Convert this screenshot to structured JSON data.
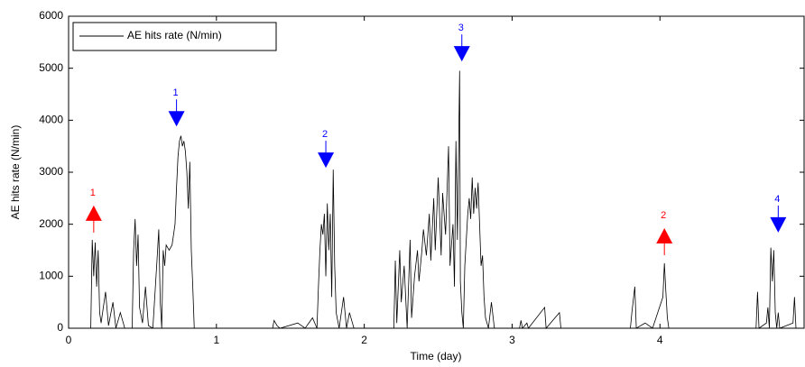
{
  "chart_data": {
    "type": "line",
    "xlabel": "Time (day)",
    "ylabel": "AE hits rate (N/min)",
    "xlim": [
      0,
      4.975
    ],
    "ylim": [
      0,
      6000
    ],
    "xticks": [
      0,
      1,
      2,
      3,
      4
    ],
    "yticks": [
      0,
      1000,
      2000,
      3000,
      4000,
      5000,
      6000
    ],
    "grid": false,
    "legend": "upper left",
    "x": [
      0,
      0.15,
      0.16,
      0.17,
      0.18,
      0.19,
      0.2,
      0.21,
      0.22,
      0.25,
      0.27,
      0.3,
      0.32,
      0.35,
      0.38,
      0.43,
      0.44,
      0.45,
      0.46,
      0.47,
      0.48,
      0.5,
      0.52,
      0.54,
      0.57,
      0.6,
      0.61,
      0.62,
      0.63,
      0.64,
      0.65,
      0.66,
      0.68,
      0.7,
      0.72,
      0.73,
      0.74,
      0.75,
      0.76,
      0.77,
      0.78,
      0.79,
      0.8,
      0.81,
      0.82,
      0.83,
      0.84,
      0.85,
      0.88,
      1.38,
      1.39,
      1.41,
      1.43,
      1.55,
      1.6,
      1.65,
      1.68,
      1.69,
      1.7,
      1.71,
      1.72,
      1.73,
      1.74,
      1.75,
      1.76,
      1.77,
      1.78,
      1.79,
      1.8,
      1.81,
      1.83,
      1.86,
      1.88,
      1.9,
      1.93,
      2.2,
      2.21,
      2.22,
      2.24,
      2.25,
      2.27,
      2.29,
      2.31,
      2.32,
      2.34,
      2.36,
      2.37,
      2.39,
      2.4,
      2.42,
      2.44,
      2.45,
      2.47,
      2.48,
      2.5,
      2.52,
      2.53,
      2.55,
      2.57,
      2.58,
      2.6,
      2.61,
      2.62,
      2.63,
      2.645,
      2.65,
      2.66,
      2.67,
      2.68,
      2.7,
      2.71,
      2.72,
      2.73,
      2.74,
      2.75,
      2.76,
      2.77,
      2.78,
      2.79,
      2.8,
      2.81,
      2.82,
      2.84,
      2.86,
      2.88,
      3.05,
      3.06,
      3.07,
      3.1,
      3.11,
      3.22,
      3.23,
      3.32,
      3.33,
      3.8,
      3.81,
      3.83,
      3.84,
      3.9,
      3.95,
      4.02,
      4.03,
      4.04,
      4.05,
      4.06,
      4.1,
      4.65,
      4.66,
      4.67,
      4.72,
      4.73,
      4.74,
      4.75,
      4.76,
      4.77,
      4.78,
      4.79,
      4.8,
      4.81,
      4.9,
      4.91,
      4.92,
      4.97
    ],
    "series": [
      {
        "name": "AE hits rate (N/min)",
        "color": "#000000",
        "values": [
          0,
          0,
          1700,
          1000,
          1650,
          800,
          1500,
          300,
          100,
          700,
          50,
          500,
          0,
          300,
          0,
          0,
          1500,
          2100,
          1200,
          1800,
          400,
          100,
          800,
          50,
          0,
          1400,
          1900,
          500,
          0,
          1500,
          1200,
          1600,
          1500,
          1600,
          2000,
          2700,
          3300,
          3600,
          3700,
          3500,
          3600,
          3400,
          3000,
          2300,
          3200,
          1500,
          800,
          0,
          0,
          0,
          150,
          50,
          0,
          100,
          0,
          200,
          0,
          800,
          1500,
          2000,
          1800,
          2200,
          1000,
          2400,
          1500,
          2200,
          600,
          3050,
          1200,
          300,
          0,
          600,
          0,
          300,
          0,
          0,
          1300,
          100,
          1500,
          500,
          1200,
          0,
          1700,
          200,
          1000,
          1500,
          900,
          1500,
          1900,
          1400,
          2200,
          1300,
          2500,
          1500,
          2900,
          1400,
          2600,
          1800,
          3500,
          1200,
          2000,
          800,
          3600,
          1700,
          4950,
          900,
          300,
          0,
          1200,
          2200,
          2500,
          2100,
          2900,
          2200,
          2700,
          2300,
          2800,
          2000,
          1200,
          1400,
          600,
          200,
          0,
          500,
          0,
          0,
          150,
          0,
          100,
          0,
          400,
          0,
          300,
          0,
          0,
          300,
          800,
          0,
          100,
          0,
          600,
          1250,
          700,
          200,
          0,
          0,
          0,
          700,
          0,
          100,
          400,
          0,
          1550,
          900,
          1500,
          300,
          0,
          300,
          0,
          100,
          600,
          0,
          0
        ]
      }
    ],
    "annotations": [
      {
        "text": "1",
        "x": 0.17,
        "y": 2360,
        "color": "#ff0000",
        "direction": "up"
      },
      {
        "text": "1",
        "x": 0.73,
        "y": 3880,
        "color": "#0000ff",
        "direction": "down"
      },
      {
        "text": "2",
        "x": 1.74,
        "y": 3085,
        "color": "#0000ff",
        "direction": "down"
      },
      {
        "text": "3",
        "x": 2.66,
        "y": 5130,
        "color": "#0000ff",
        "direction": "down"
      },
      {
        "text": "2",
        "x": 4.03,
        "y": 1925,
        "color": "#ff0000",
        "direction": "up"
      },
      {
        "text": "4",
        "x": 4.8,
        "y": 1840,
        "color": "#0000ff",
        "direction": "down"
      }
    ]
  }
}
